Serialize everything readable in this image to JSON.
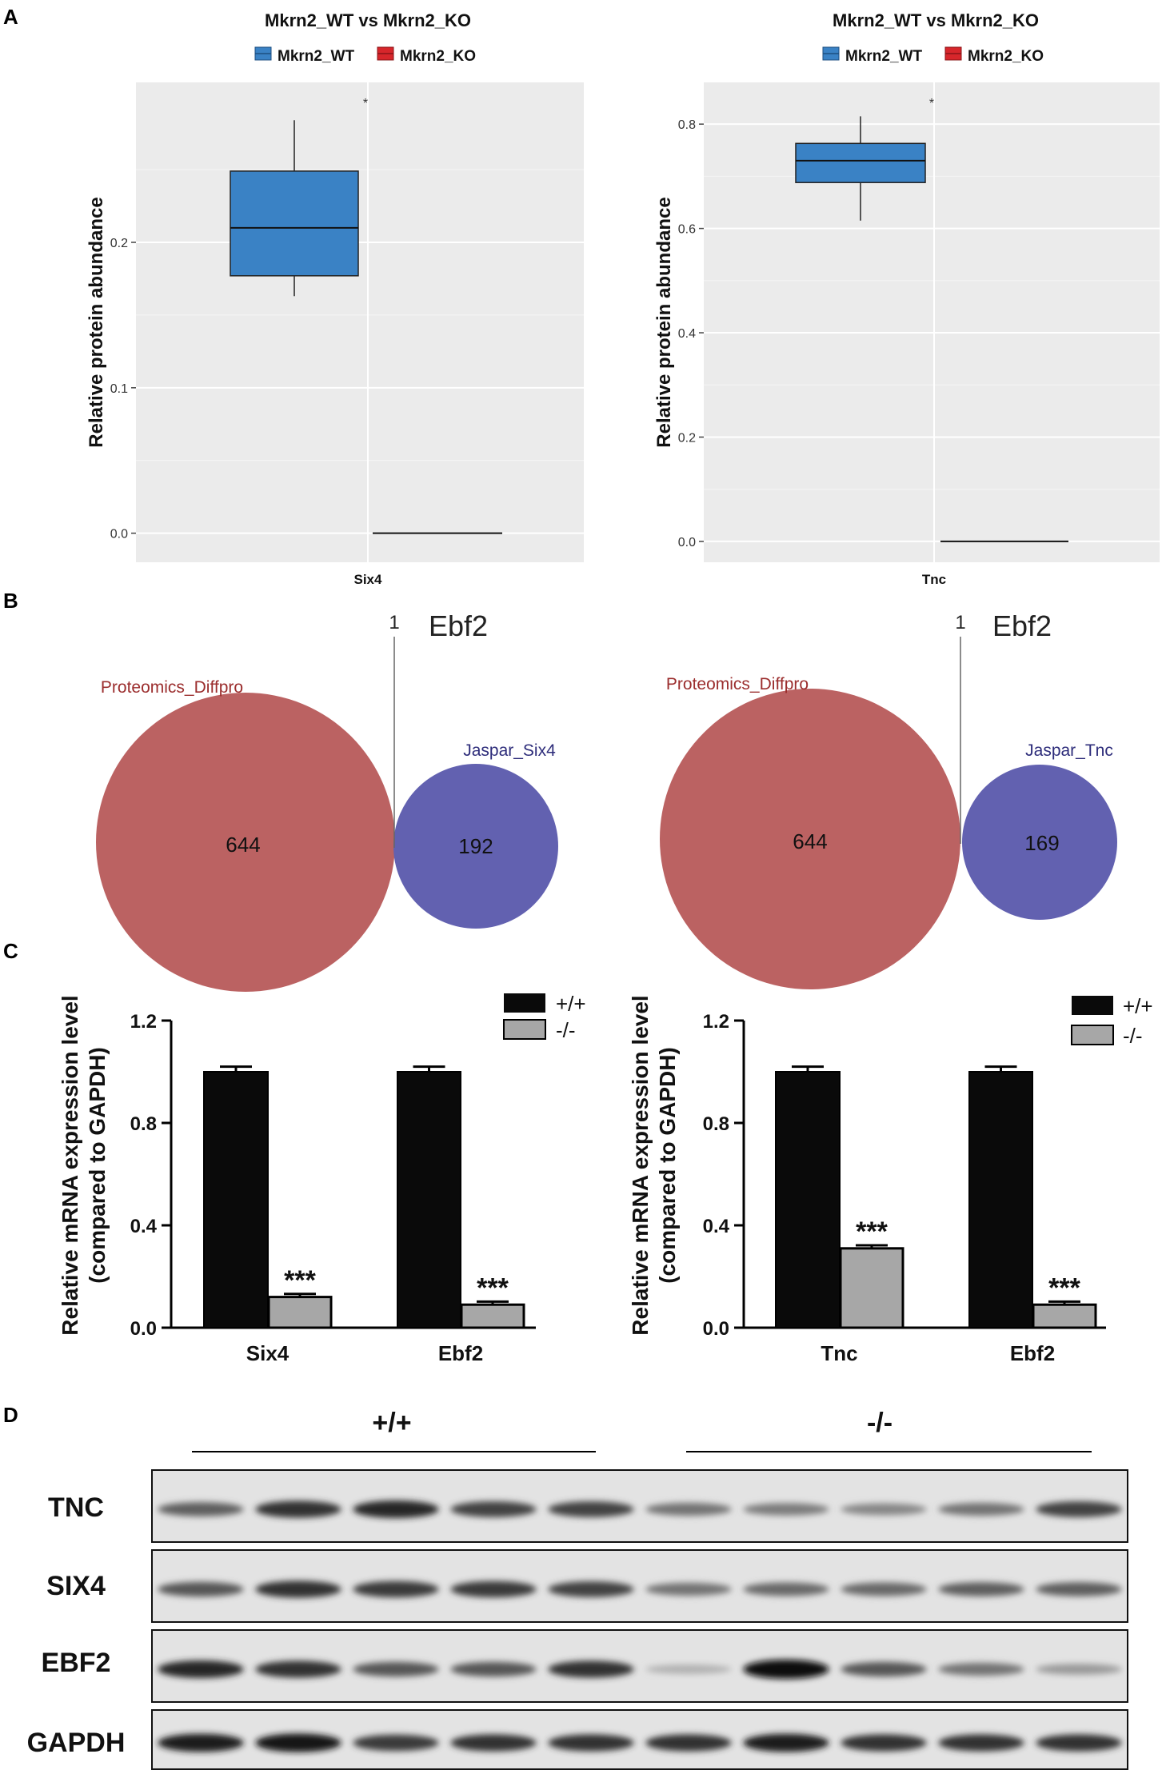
{
  "panels": {
    "a": "A",
    "b": "B",
    "c": "C",
    "d": "D"
  },
  "colors": {
    "wt": "#3a82c5",
    "ko": "#d7262b",
    "proteomics": "#bb6262",
    "jaspar": "#6261b0",
    "bar_wt": "#0a0a0a",
    "bar_ko": "#a7a7a7",
    "plot_bg": "#ebebeb"
  },
  "boxplots": [
    {
      "title": "Mkrn2_WT vs Mkrn2_KO",
      "legend": [
        "Mkrn2_WT",
        "Mkrn2_KO"
      ],
      "ylabel": "Relative protein abundance",
      "category": "Six4",
      "sig": "*",
      "yticks": [
        "0.0",
        "0.1",
        "0.2"
      ]
    },
    {
      "title": "Mkrn2_WT vs Mkrn2_KO",
      "legend": [
        "Mkrn2_WT",
        "Mkrn2_KO"
      ],
      "ylabel": "Relative protein abundance",
      "category": "Tnc",
      "sig": "*",
      "yticks": [
        "0.0",
        "0.2",
        "0.4",
        "0.6",
        "0.8"
      ]
    }
  ],
  "venns": [
    {
      "title": "Ebf2",
      "intersection": "1",
      "left_label": "Proteomics_Diffpro",
      "left_count": "644",
      "right_label": "Jaspar_Six4",
      "right_count": "192"
    },
    {
      "title": "Ebf2",
      "intersection": "1",
      "left_label": "Proteomics_Diffpro",
      "left_count": "644",
      "right_label": "Jaspar_Tnc",
      "right_count": "169"
    }
  ],
  "barcharts": [
    {
      "ylabel_line1": "Relative mRNA expression level",
      "ylabel_line2": "(compared to GAPDH)",
      "legend": [
        "+/+",
        "-/-"
      ],
      "categories": [
        "Six4",
        "Ebf2"
      ],
      "stars": [
        "***",
        "***"
      ],
      "yticks": [
        "0.0",
        "0.4",
        "0.8",
        "1.2"
      ]
    },
    {
      "ylabel_line1": "Relative mRNA expression level",
      "ylabel_line2": "(compared to GAPDH)",
      "legend": [
        "+/+",
        "-/-"
      ],
      "categories": [
        "Tnc",
        "Ebf2"
      ],
      "stars": [
        "***",
        "***"
      ],
      "yticks": [
        "0.0",
        "0.4",
        "0.8",
        "1.2"
      ]
    }
  ],
  "blot": {
    "group_wt": "+/+",
    "group_ko": "-/-",
    "rows": [
      {
        "name": "TNC",
        "intensities": [
          0.55,
          0.8,
          0.85,
          0.7,
          0.7,
          0.45,
          0.4,
          0.35,
          0.45,
          0.7
        ]
      },
      {
        "name": "SIX4",
        "intensities": [
          0.6,
          0.8,
          0.75,
          0.75,
          0.7,
          0.45,
          0.5,
          0.5,
          0.55,
          0.55
        ]
      },
      {
        "name": "EBF2",
        "intensities": [
          0.85,
          0.8,
          0.6,
          0.6,
          0.8,
          0.12,
          1.0,
          0.6,
          0.45,
          0.25
        ]
      },
      {
        "name": "GAPDH",
        "intensities": [
          0.9,
          0.95,
          0.75,
          0.8,
          0.8,
          0.8,
          0.9,
          0.8,
          0.8,
          0.8
        ]
      }
    ]
  },
  "chart_data": [
    {
      "type": "box",
      "title": "Mkrn2_WT vs Mkrn2_KO",
      "xlabel": "",
      "ylabel": "Relative protein abundance",
      "categories": [
        "Six4"
      ],
      "ylim": [
        -0.02,
        0.31
      ],
      "yticks": [
        0.0,
        0.1,
        0.2
      ],
      "series": [
        {
          "name": "Mkrn2_WT",
          "min": 0.163,
          "q1": 0.177,
          "median": 0.21,
          "q3": 0.249,
          "max": 0.284
        },
        {
          "name": "Mkrn2_KO",
          "min": 0.0,
          "q1": 0.0,
          "median": 0.0,
          "q3": 0.0,
          "max": 0.0
        }
      ],
      "annotation": "*",
      "grid": true,
      "legend": "top"
    },
    {
      "type": "box",
      "title": "Mkrn2_WT vs Mkrn2_KO",
      "xlabel": "",
      "ylabel": "Relative protein abundance",
      "categories": [
        "Tnc"
      ],
      "ylim": [
        -0.04,
        0.88
      ],
      "yticks": [
        0.0,
        0.2,
        0.4,
        0.6,
        0.8
      ],
      "series": [
        {
          "name": "Mkrn2_WT",
          "min": 0.615,
          "q1": 0.688,
          "median": 0.73,
          "q3": 0.763,
          "max": 0.815
        },
        {
          "name": "Mkrn2_KO",
          "min": 0.0,
          "q1": 0.0,
          "median": 0.0,
          "q3": 0.0,
          "max": 0.0
        }
      ],
      "annotation": "*",
      "grid": true,
      "legend": "top"
    },
    {
      "type": "venn",
      "title": "Ebf2",
      "sets": [
        {
          "name": "Proteomics_Diffpro",
          "only": 644
        },
        {
          "name": "Jaspar_Six4",
          "only": 192
        }
      ],
      "intersection": 1
    },
    {
      "type": "venn",
      "title": "Ebf2",
      "sets": [
        {
          "name": "Proteomics_Diffpro",
          "only": 644
        },
        {
          "name": "Jaspar_Tnc",
          "only": 169
        }
      ],
      "intersection": 1
    },
    {
      "type": "bar",
      "title": "",
      "xlabel": "",
      "ylabel": "Relative mRNA expression level (compared to GAPDH)",
      "categories": [
        "Six4",
        "Ebf2"
      ],
      "ylim": [
        0,
        1.2
      ],
      "yticks": [
        0.0,
        0.4,
        0.8,
        1.2
      ],
      "series": [
        {
          "name": "+/+",
          "values": [
            1.0,
            1.0
          ],
          "errors": [
            0.02,
            0.02
          ]
        },
        {
          "name": "-/-",
          "values": [
            0.12,
            0.09
          ],
          "errors": [
            0.012,
            0.012
          ]
        }
      ],
      "annotations": [
        "***",
        "***"
      ],
      "legend": "top-right"
    },
    {
      "type": "bar",
      "title": "",
      "xlabel": "",
      "ylabel": "Relative mRNA expression level (compared to GAPDH)",
      "categories": [
        "Tnc",
        "Ebf2"
      ],
      "ylim": [
        0,
        1.2
      ],
      "yticks": [
        0.0,
        0.4,
        0.8,
        1.2
      ],
      "series": [
        {
          "name": "+/+",
          "values": [
            1.0,
            1.0
          ],
          "errors": [
            0.02,
            0.02
          ]
        },
        {
          "name": "-/-",
          "values": [
            0.31,
            0.09
          ],
          "errors": [
            0.012,
            0.012
          ]
        }
      ],
      "annotations": [
        "***",
        "***"
      ],
      "legend": "top-right"
    }
  ]
}
